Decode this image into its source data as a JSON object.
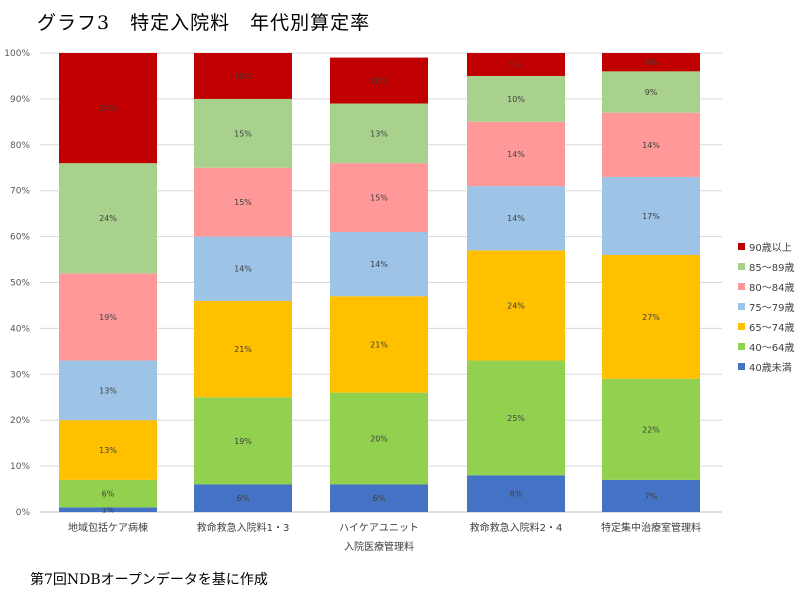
{
  "title": "グラフ3　特定入院料　年代別算定率",
  "footnote": "第7回NDBオープンデータを基に作成",
  "chart_data": {
    "type": "bar",
    "stacked": true,
    "ylim": [
      0,
      100
    ],
    "yticks": [
      "0%",
      "10%",
      "20%",
      "30%",
      "40%",
      "50%",
      "60%",
      "70%",
      "80%",
      "90%",
      "100%"
    ],
    "categories": [
      [
        "地域包括ケア病棟"
      ],
      [
        "救命救急入院料1・3"
      ],
      [
        "ハイケアユニット",
        "入院医療管理料"
      ],
      [
        "救命救急入院料2・4"
      ],
      [
        "特定集中治療室管理料"
      ]
    ],
    "legend_position": "right",
    "series": [
      {
        "name": "40歳未満",
        "color": "#4472C4",
        "values": [
          1,
          6,
          6,
          8,
          7
        ],
        "labels": [
          "1%",
          "6%",
          "6%",
          "8%",
          "7%"
        ]
      },
      {
        "name": "40～64歳",
        "color": "#92D050",
        "values": [
          6,
          19,
          20,
          25,
          22
        ],
        "labels": [
          "6%",
          "19%",
          "20%",
          "25%",
          "22%"
        ]
      },
      {
        "name": "65～74歳",
        "color": "#FFC000",
        "values": [
          13,
          21,
          21,
          24,
          27
        ],
        "labels": [
          "13%",
          "21%",
          "21%",
          "24%",
          "27%"
        ]
      },
      {
        "name": "75～79歳",
        "color": "#9DC3E6",
        "values": [
          13,
          14,
          14,
          14,
          17
        ],
        "labels": [
          "13%",
          "14%",
          "14%",
          "14%",
          "17%"
        ]
      },
      {
        "name": "80～84歳",
        "color": "#FF9999",
        "values": [
          19,
          15,
          15,
          14,
          14
        ],
        "labels": [
          "19%",
          "15%",
          "15%",
          "14%",
          "14%"
        ]
      },
      {
        "name": "85～89歳",
        "color": "#A9D18E",
        "values": [
          24,
          15,
          13,
          10,
          9
        ],
        "labels": [
          "24%",
          "15%",
          "13%",
          "10%",
          "9%"
        ]
      },
      {
        "name": "90歳以上",
        "color": "#C00000",
        "values": [
          24,
          10,
          10,
          5,
          4
        ],
        "labels": [
          "24%",
          "10%",
          "10%",
          "5%",
          "4%"
        ]
      }
    ]
  }
}
